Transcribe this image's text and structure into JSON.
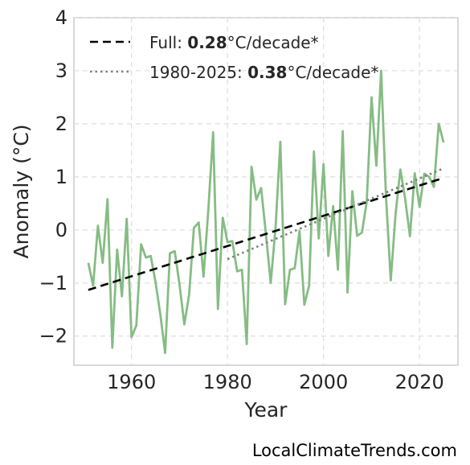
{
  "chart_data": {
    "type": "line",
    "title": "",
    "xlabel": "Year",
    "ylabel": "Anomaly (°C)",
    "xlim": [
      1948,
      2028
    ],
    "ylim": [
      -2.55,
      4.0
    ],
    "xticks": [
      1960,
      1980,
      2000,
      2020
    ],
    "yticks": [
      -2,
      -1,
      0,
      1,
      2,
      3,
      4
    ],
    "ytick_labels": [
      "−2",
      "−1",
      "0",
      "1",
      "2",
      "3",
      "4"
    ],
    "grid": true,
    "legend_placement": "top-left",
    "series": [
      {
        "style": "solid",
        "color": "#86bc84",
        "x": [
          1951,
          1952,
          1953,
          1954,
          1955,
          1956,
          1957,
          1958,
          1959,
          1960,
          1961,
          1962,
          1963,
          1964,
          1965,
          1966,
          1967,
          1968,
          1969,
          1970,
          1971,
          1972,
          1973,
          1974,
          1975,
          1976,
          1977,
          1978,
          1979,
          1980,
          1981,
          1982,
          1983,
          1984,
          1985,
          1986,
          1987,
          1988,
          1989,
          1990,
          1991,
          1992,
          1993,
          1994,
          1995,
          1996,
          1997,
          1998,
          1999,
          2000,
          2001,
          2002,
          2003,
          2004,
          2005,
          2006,
          2007,
          2008,
          2009,
          2010,
          2011,
          2012,
          2013,
          2014,
          2015,
          2016,
          2017,
          2018,
          2019,
          2020,
          2021,
          2022,
          2023,
          2024,
          2025
        ],
        "values": [
          -0.62,
          -1.05,
          0.08,
          -0.62,
          0.58,
          -2.22,
          -0.37,
          -1.25,
          0.21,
          -2.02,
          -1.8,
          -0.27,
          -0.52,
          -0.49,
          -0.98,
          -1.59,
          -2.32,
          -0.44,
          -0.4,
          -1.03,
          -1.78,
          -1.22,
          0.04,
          0.14,
          -0.88,
          0.38,
          1.84,
          -1.49,
          0.23,
          -0.23,
          -0.21,
          -0.78,
          -0.75,
          -2.15,
          1.19,
          0.57,
          0.79,
          -0.08,
          -1.0,
          0.04,
          1.66,
          -1.4,
          -0.75,
          -0.72,
          -0.02,
          -1.41,
          -1.05,
          1.48,
          -0.16,
          1.24,
          -0.49,
          0.45,
          -0.75,
          1.86,
          -1.18,
          0.73,
          -0.11,
          -0.05,
          0.53,
          2.5,
          1.21,
          3.0,
          0.65,
          -0.95,
          0.29,
          1.14,
          0.59,
          -0.12,
          1.07,
          0.43,
          1.06,
          1.0,
          0.81,
          2.0,
          1.65
        ]
      },
      {
        "style": "dashed",
        "color": "#000000",
        "x": [
          1951,
          2025
        ],
        "values": [
          -1.13,
          0.98
        ]
      },
      {
        "style": "dotted",
        "color": "#7f7f7f",
        "x": [
          1980,
          2025
        ],
        "values": [
          -0.55,
          1.16
        ]
      }
    ],
    "legend": [
      {
        "prefix": "Full: ",
        "bold": "0.28",
        "suffix": "°C/decade*",
        "style": "dashed",
        "color": "#000000"
      },
      {
        "prefix": "1980-2025: ",
        "bold": "0.38",
        "suffix": "°C/decade*",
        "style": "dotted",
        "color": "#7f7f7f"
      }
    ]
  },
  "credit": "LocalClimateTrends.com"
}
